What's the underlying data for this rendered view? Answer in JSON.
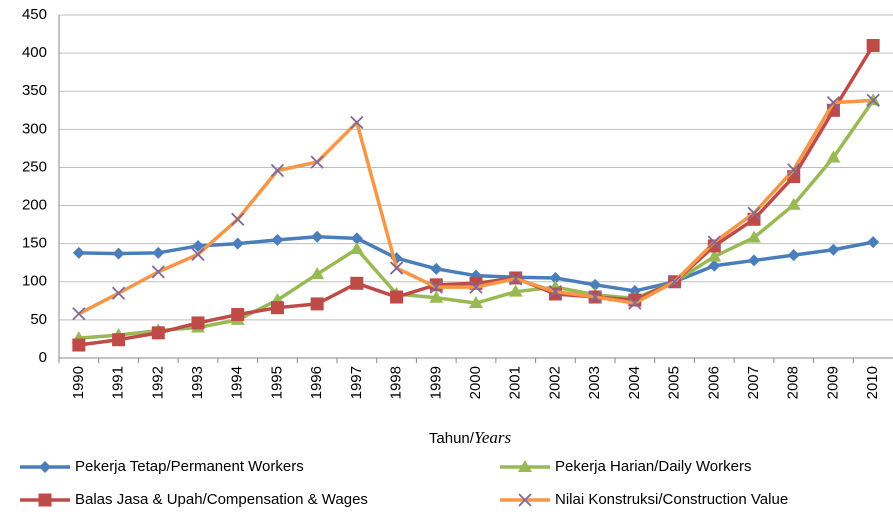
{
  "chart_data": {
    "type": "line",
    "xlabel": {
      "main": "Tahun/",
      "italic": "Years"
    },
    "categories": [
      "1990",
      "1991",
      "1992",
      "1993",
      "1994",
      "1995",
      "1996",
      "1997",
      "1998",
      "1999",
      "2000",
      "2001",
      "2002",
      "2003",
      "2004",
      "2005",
      "2006",
      "2007",
      "2008",
      "2009",
      "2010"
    ],
    "series": [
      {
        "name": "Pekerja Tetap/Permanent Workers",
        "color": "#4a7ebb",
        "marker": "diamond",
        "marker_color": "#4a7ebb",
        "values": [
          138,
          137,
          138,
          147,
          150,
          155,
          159,
          157,
          131,
          117,
          108,
          106,
          105,
          96,
          88,
          100,
          121,
          128,
          135,
          142,
          152
        ]
      },
      {
        "name": "Pekerja Harian/Daily Workers",
        "color": "#98b954",
        "marker": "triangle",
        "marker_color": "#98b954",
        "values": [
          26,
          30,
          36,
          40,
          50,
          76,
          110,
          143,
          84,
          79,
          72,
          87,
          93,
          83,
          78,
          100,
          133,
          158,
          201,
          263,
          338
        ]
      },
      {
        "name": "Balas Jasa & Upah/Compensation & Wages",
        "color": "#be4b48",
        "marker": "square",
        "marker_color": "#be4b48",
        "values": [
          17,
          24,
          33,
          46,
          57,
          66,
          71,
          98,
          80,
          96,
          98,
          105,
          84,
          80,
          76,
          100,
          147,
          182,
          238,
          325,
          410
        ]
      },
      {
        "name": "Nilai Konstruksi/Construction Value",
        "color": "#f79646",
        "marker": "x",
        "marker_color": "#7e6a9c",
        "values": [
          58,
          85,
          113,
          136,
          182,
          246,
          257,
          309,
          118,
          93,
          93,
          104,
          87,
          80,
          72,
          100,
          152,
          190,
          247,
          335,
          338
        ]
      }
    ],
    "ylim": [
      0,
      450
    ],
    "yticks": [
      0,
      50,
      100,
      150,
      200,
      250,
      300,
      350,
      400,
      450
    ],
    "grid": true,
    "legend": "bottom"
  }
}
